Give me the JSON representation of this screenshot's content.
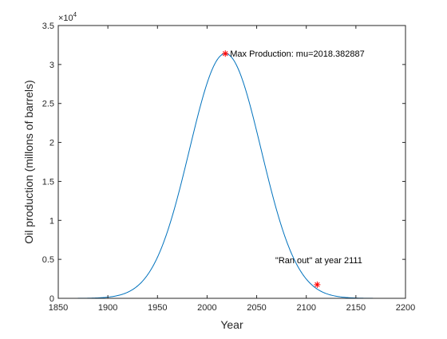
{
  "chart_data": {
    "type": "line",
    "xlabel": "Year",
    "ylabel": "Oil production (millons of barrels)",
    "xlim": [
      1850,
      2200
    ],
    "ylim": [
      0,
      35000
    ],
    "x_ticks": [
      1850,
      1900,
      1950,
      2000,
      2050,
      2100,
      2150,
      2200
    ],
    "y_ticks": [
      0,
      5000,
      10000,
      15000,
      20000,
      25000,
      30000,
      35000
    ],
    "y_tick_labels": [
      "0",
      "0.5",
      "1",
      "1.5",
      "2",
      "2.5",
      "3",
      "3.5"
    ],
    "y_exponent_base": "×10",
    "y_exponent_power": "4",
    "grid": false,
    "series": [
      {
        "color": "#0072BD",
        "curve": {
          "form": "gaussian",
          "mu": 2018.382887,
          "peak": 31400,
          "sigma": 36.2
        }
      }
    ],
    "markers": [
      {
        "x": 2018.382887,
        "y": 31400,
        "symbol": "*",
        "color": "#FF0000",
        "label": "Max Production: mu=2018.382887"
      },
      {
        "x": 2111,
        "y": 1750,
        "symbol": "*",
        "color": "#FF0000",
        "label": "\"Ran out\" at year 2111"
      }
    ]
  }
}
